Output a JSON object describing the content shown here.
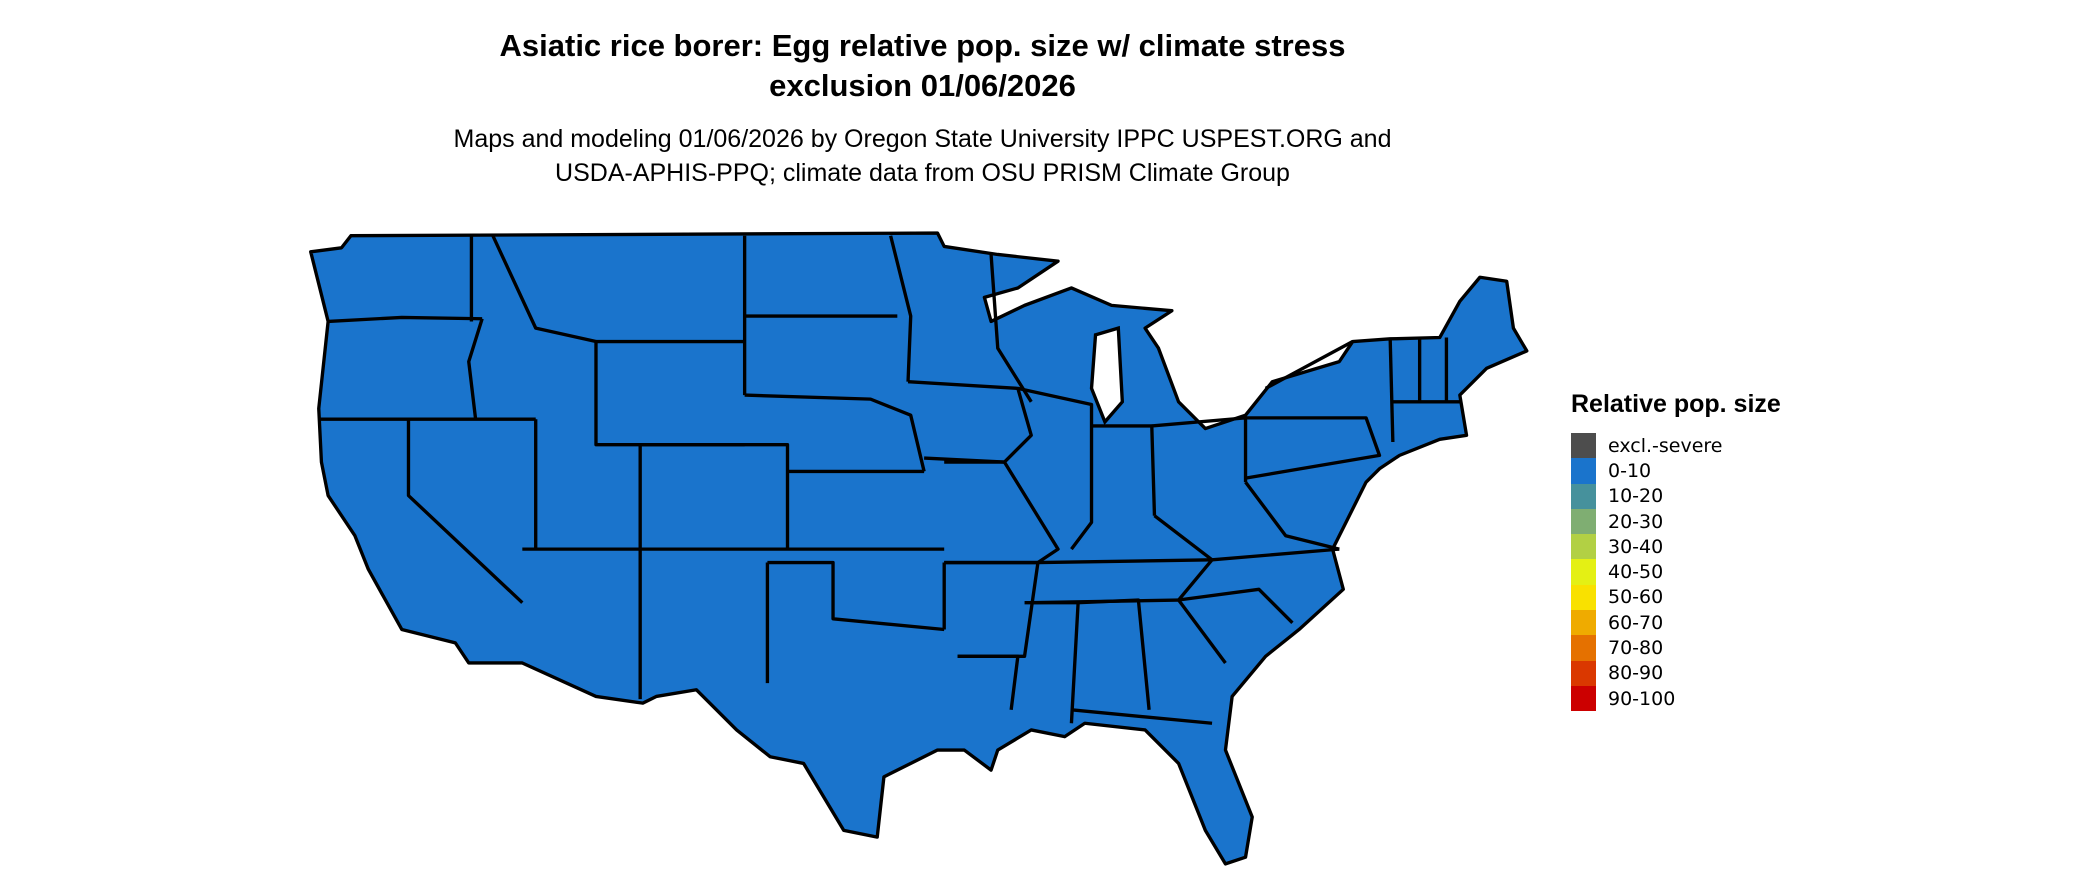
{
  "title_line1": "Asiatic rice borer: Egg relative pop. size w/ climate stress",
  "title_line2": "exclusion 01/06/2026",
  "subtitle_line1": "Maps and modeling 01/06/2026 by Oregon State University IPPC USPEST.ORG and",
  "subtitle_line2": "USDA-APHIS-PPQ; climate data from OSU PRISM Climate Group",
  "map": {
    "fill_color": "#1a74cc",
    "fill_category": "0-10",
    "border_color": "#000000"
  },
  "legend": {
    "title": "Relative pop. size",
    "items": [
      {
        "label": "excl.-severe",
        "color": "#4d4d4d"
      },
      {
        "label": "0-10",
        "color": "#1a74cc"
      },
      {
        "label": "10-20",
        "color": "#46919c"
      },
      {
        "label": "20-30",
        "color": "#7fae72"
      },
      {
        "label": "30-40",
        "color": "#b2d044"
      },
      {
        "label": "40-50",
        "color": "#e4f014"
      },
      {
        "label": "50-60",
        "color": "#f9e100"
      },
      {
        "label": "60-70",
        "color": "#efab00"
      },
      {
        "label": "70-80",
        "color": "#e57100"
      },
      {
        "label": "80-90",
        "color": "#da3800"
      },
      {
        "label": "90-100",
        "color": "#cc0000"
      }
    ]
  }
}
